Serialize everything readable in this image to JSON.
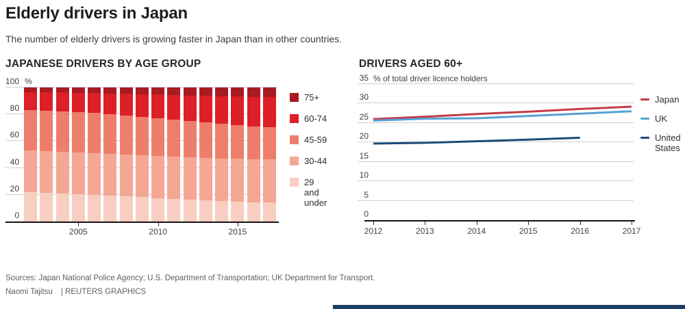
{
  "header": {
    "title": "Elderly drivers in Japan",
    "subtitle": "The number of elderly drivers is growing faster in Japan than in other countries."
  },
  "footer": {
    "sources": "Sources: Japan National Police Agency; U.S. Department of Transportation; UK Department for Transport.",
    "byline": "Naomi Tajitsu",
    "credit": "| REUTERS GRAPHICS"
  },
  "colors": {
    "axis": "#121212",
    "gridline": "#cfcfcf",
    "bottom_banner": "#1d3f62"
  },
  "chart_data": [
    {
      "id": "japanese-drivers-by-age-group",
      "type": "bar",
      "stacked": true,
      "title": "JAPANESE DRIVERS BY AGE GROUP",
      "unit": "%",
      "ylim": [
        0,
        100
      ],
      "yticks": [
        0,
        20,
        40,
        60,
        80,
        100
      ],
      "grid": true,
      "categories": [
        2002,
        2003,
        2004,
        2005,
        2006,
        2007,
        2008,
        2009,
        2010,
        2011,
        2012,
        2013,
        2014,
        2015,
        2016,
        2017
      ],
      "x_ticks": [
        {
          "index": 3,
          "label": "2005"
        },
        {
          "index": 8,
          "label": "2010"
        },
        {
          "index": 13,
          "label": "2015"
        }
      ],
      "series": [
        {
          "name": "29 and under",
          "color": "#f8cec1",
          "values": [
            22,
            21.5,
            21,
            20.5,
            20,
            19.5,
            19,
            18.5,
            17.5,
            17,
            16.5,
            16,
            15.5,
            15,
            14.5,
            14.5
          ]
        },
        {
          "name": "30-44",
          "color": "#f3a794",
          "values": [
            31,
            31,
            31,
            31,
            31,
            31,
            31,
            31,
            31.5,
            31.5,
            31.5,
            31.5,
            31.5,
            32,
            32,
            32
          ]
        },
        {
          "name": "45-59",
          "color": "#ee7e6b",
          "values": [
            30,
            30,
            30,
            30,
            30,
            29.5,
            29,
            28.5,
            28,
            27.5,
            27,
            26.5,
            26,
            25,
            24.5,
            24
          ]
        },
        {
          "name": "60-74",
          "color": "#dd1f27",
          "values": [
            13.5,
            13.9,
            14.2,
            14.5,
            14.8,
            15.6,
            16.3,
            17,
            17.7,
            18.4,
            19.1,
            19.8,
            20.5,
            21.2,
            22,
            22.5
          ]
        },
        {
          "name": "75+",
          "color": "#a81b22",
          "values": [
            3.5,
            3.6,
            3.8,
            4,
            4.2,
            4.4,
            4.7,
            5,
            5.3,
            5.6,
            5.9,
            6.2,
            6.5,
            6.8,
            7,
            7
          ]
        }
      ],
      "legend_position": "right",
      "legend_order": [
        "75+",
        "60-74",
        "45-59",
        "30-44",
        "29 and under"
      ]
    },
    {
      "id": "drivers-aged-60-plus",
      "type": "line",
      "title": "DRIVERS AGED 60+",
      "ylabel": "% of total driver licence holders",
      "ylim": [
        0,
        35
      ],
      "yticks": [
        0,
        5,
        10,
        15,
        20,
        25,
        30,
        35
      ],
      "grid": true,
      "x": [
        2012,
        2013,
        2014,
        2015,
        2016,
        2017
      ],
      "series": [
        {
          "name": "Japan",
          "color": "#c23a49",
          "values": [
            26.0,
            26.6,
            27.3,
            27.9,
            28.6,
            29.2
          ]
        },
        {
          "name": "UK",
          "color": "#55a1d6",
          "values": [
            25.6,
            26.1,
            26.2,
            26.8,
            27.4,
            28.0
          ]
        },
        {
          "name": "United States",
          "color": "#1d4b77",
          "values": [
            19.7,
            19.9,
            20.3,
            20.7,
            21.2,
            null
          ]
        }
      ],
      "legend_position": "right"
    }
  ]
}
